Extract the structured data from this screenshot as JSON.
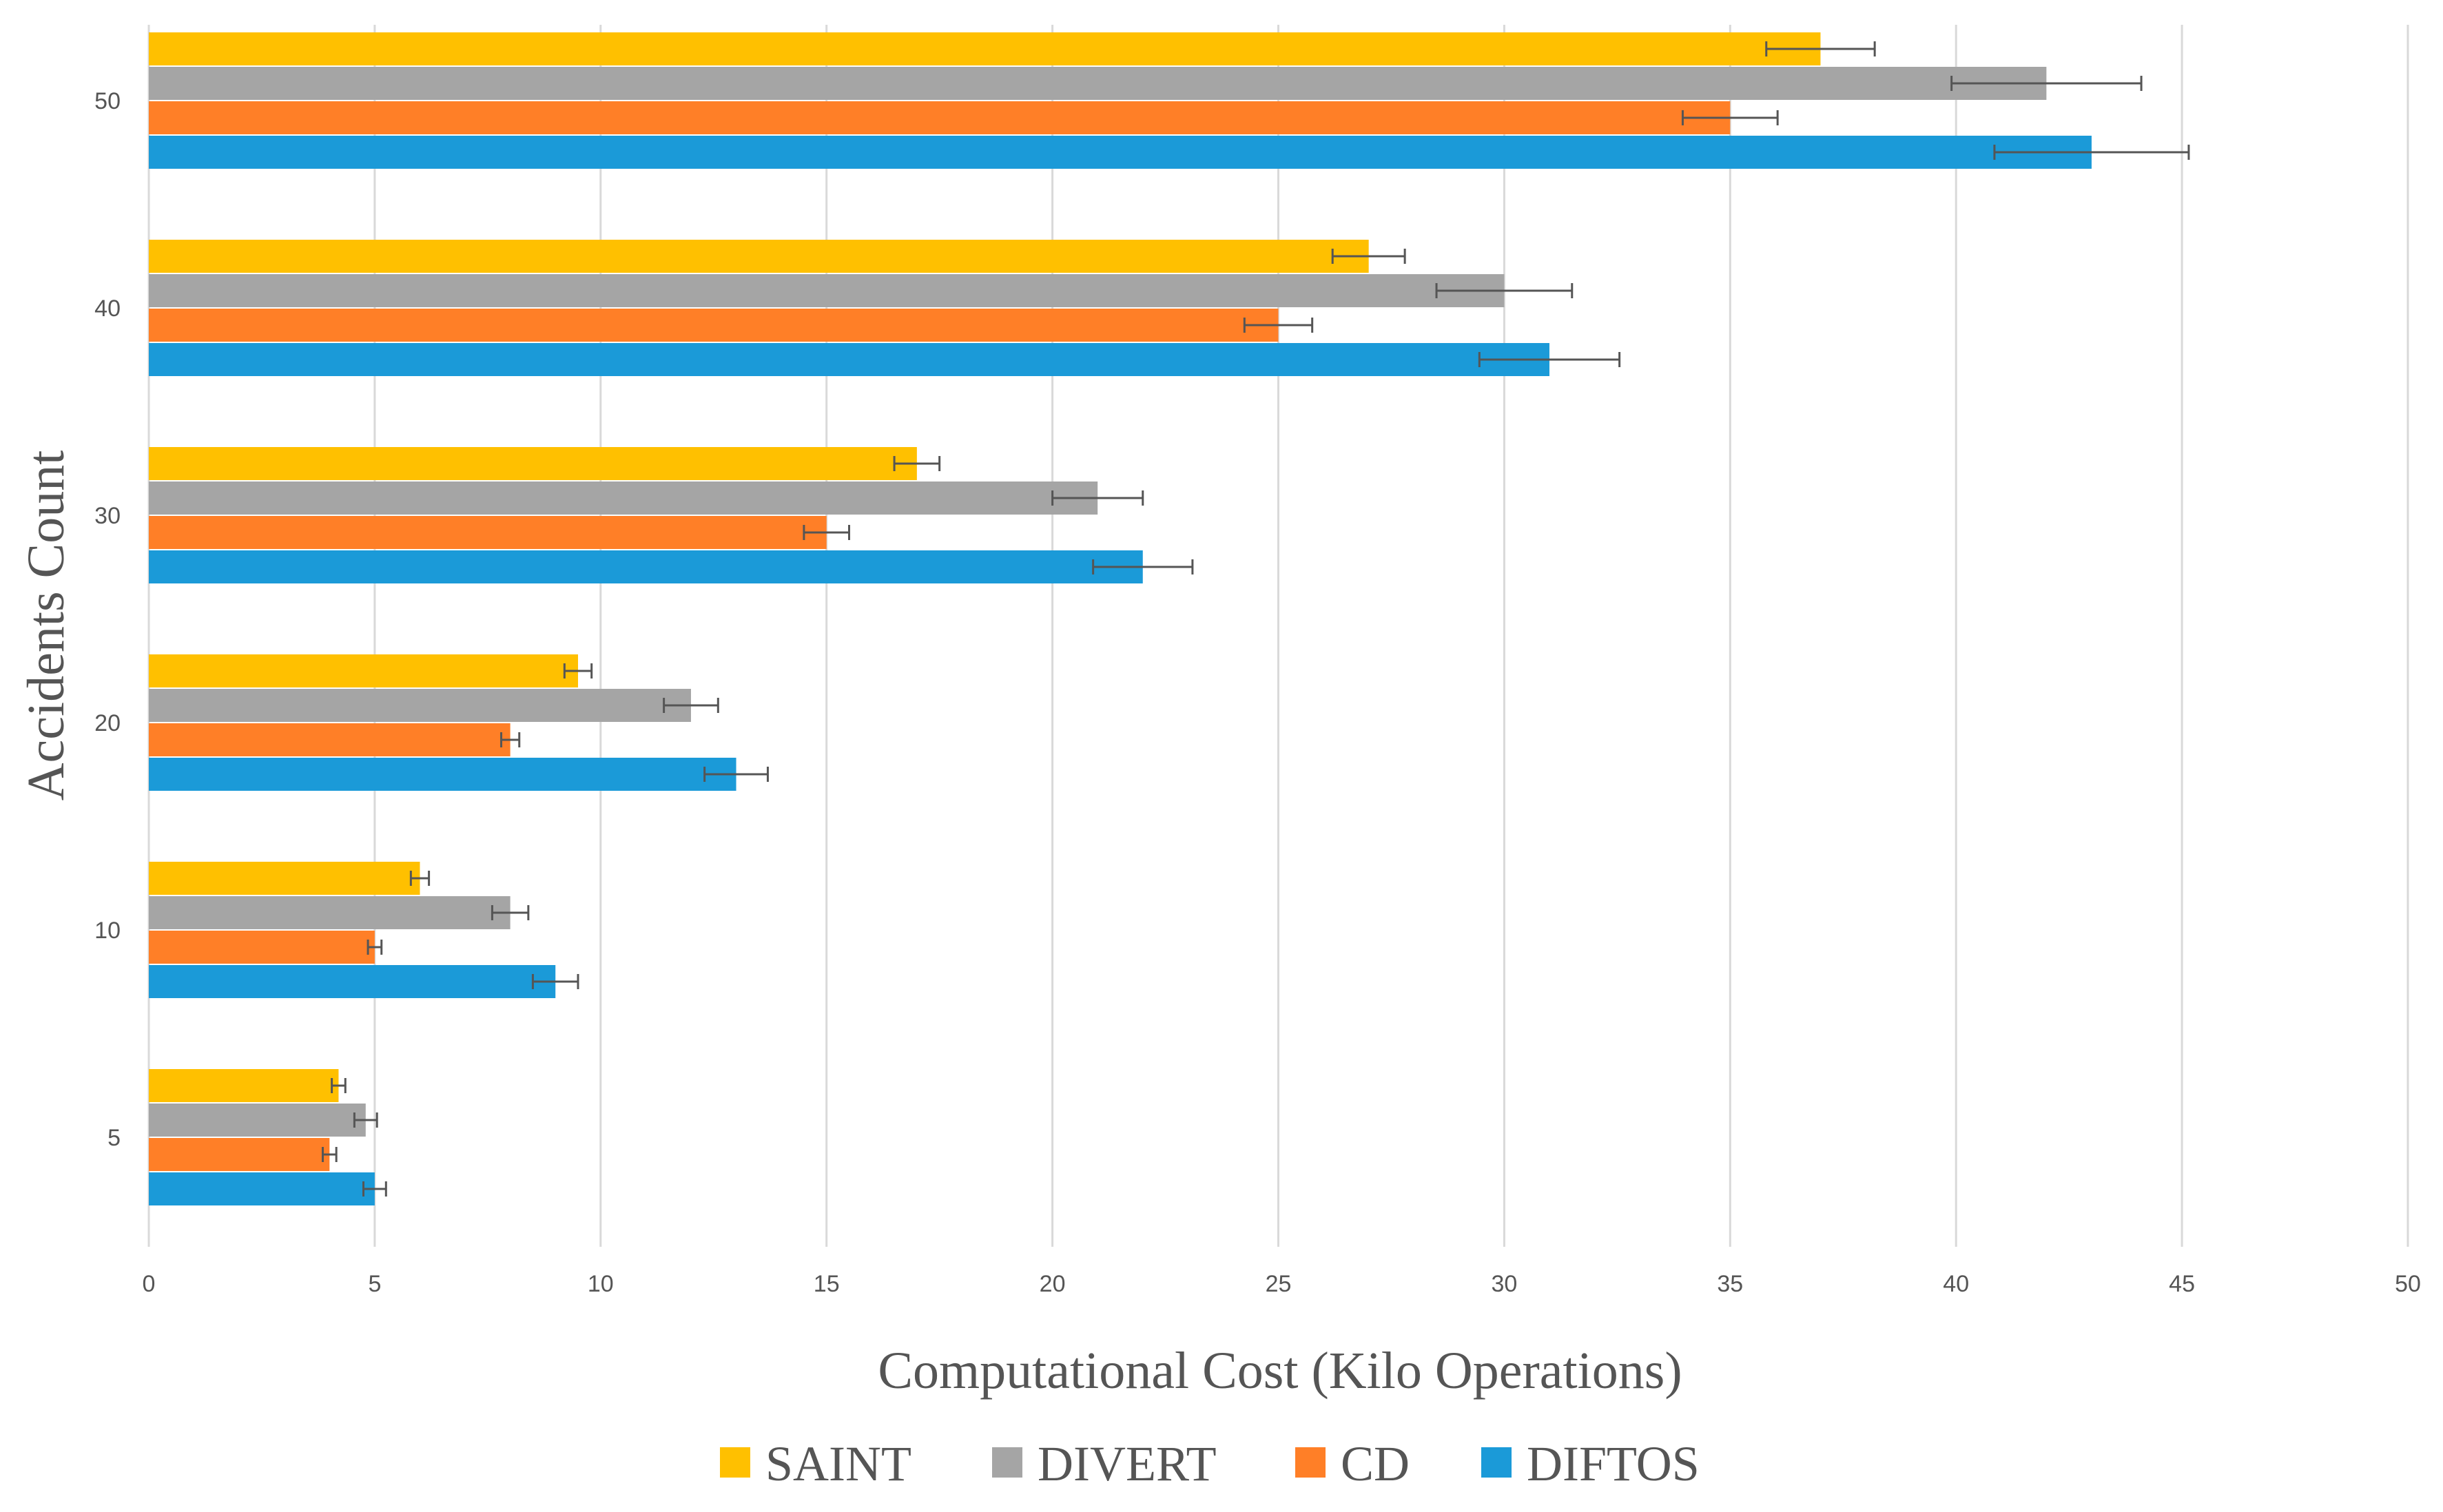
{
  "chart_data": {
    "type": "bar",
    "orientation": "horizontal",
    "title": "",
    "xlabel": "Computational Cost (Kilo Operations)",
    "ylabel": "Accidents Count",
    "xlim": [
      0,
      50
    ],
    "xticks": [
      "0",
      "5",
      "10",
      "15",
      "20",
      "25",
      "30",
      "35",
      "40",
      "45",
      "50"
    ],
    "categories": [
      "5",
      "10",
      "20",
      "30",
      "40",
      "50"
    ],
    "grid": "vertical",
    "legend_position": "bottom",
    "series": [
      {
        "name": "SAINT",
        "color": "#FFC000",
        "values": [
          4.2,
          6,
          9.5,
          17,
          27,
          37
        ],
        "errors": [
          0.15,
          0.2,
          0.3,
          0.5,
          0.8,
          1.2
        ]
      },
      {
        "name": "DIVERT",
        "color": "#A5A5A5",
        "values": [
          4.8,
          8,
          12,
          21,
          30,
          42
        ],
        "errors": [
          0.25,
          0.4,
          0.6,
          1.0,
          1.5,
          2.1
        ]
      },
      {
        "name": "CD",
        "color": "#FF7F27",
        "values": [
          4,
          5,
          8,
          15,
          25,
          35
        ],
        "errors": [
          0.15,
          0.15,
          0.2,
          0.5,
          0.75,
          1.05
        ]
      },
      {
        "name": "DIFTOS",
        "color": "#1B9AD8",
        "values": [
          5,
          9,
          13,
          22,
          31,
          43
        ],
        "errors": [
          0.25,
          0.5,
          0.7,
          1.1,
          1.55,
          2.15
        ]
      }
    ]
  }
}
